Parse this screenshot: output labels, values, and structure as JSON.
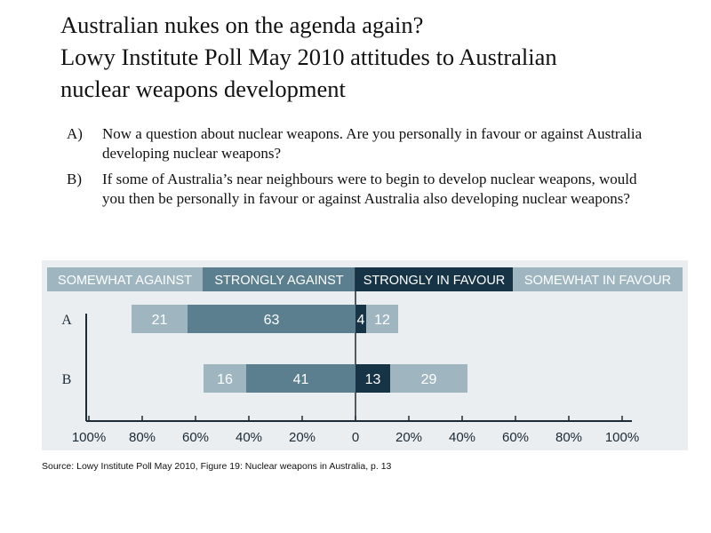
{
  "title_lines": [
    "Australian nukes on the agenda again?",
    "Lowy Institute Poll May 2010 attitudes to Australian",
    "nuclear weapons development"
  ],
  "questions": [
    {
      "letter": "A)",
      "text": "Now a question about nuclear weapons. Are you personally in favour or against Australia developing nuclear weapons?"
    },
    {
      "letter": "B)",
      "text": "If some of Australia’s near neighbours were to begin to develop nuclear weapons, would you then be personally in favour or against Australia also developing nuclear weapons?"
    }
  ],
  "source": "Source: Lowy Institute Poll May 2010, Figure 19: Nuclear weapons in Australia, p. 13",
  "colors": {
    "somewhat_against": "#9fb6c1",
    "strongly_against": "#5b7f8f",
    "strongly_in_favour": "#173447",
    "somewhat_in_favour": "#9fb6c1",
    "axis": "#1c2b36"
  },
  "chart_data": {
    "type": "bar",
    "orientation": "horizontal",
    "stacked": "diverging",
    "categories": [
      "A",
      "B"
    ],
    "legend": [
      "SOMEWHAT AGAINST",
      "STRONGLY AGAINST",
      "STRONGLY IN FAVOUR",
      "SOMEWHAT IN FAVOUR"
    ],
    "legend_placement": "top",
    "series": [
      {
        "name": "SOMEWHAT AGAINST",
        "side": "left",
        "values": [
          21,
          16
        ]
      },
      {
        "name": "STRONGLY AGAINST",
        "side": "left",
        "values": [
          63,
          41
        ]
      },
      {
        "name": "STRONGLY IN FAVOUR",
        "side": "right",
        "values": [
          4,
          13
        ]
      },
      {
        "name": "SOMEWHAT IN FAVOUR",
        "side": "right",
        "values": [
          12,
          29
        ]
      }
    ],
    "xlim": [
      -100,
      100
    ],
    "xticks": [
      -100,
      -80,
      -60,
      -40,
      -20,
      0,
      20,
      40,
      60,
      80,
      100
    ],
    "xtick_labels": [
      "100%",
      "80%",
      "60%",
      "40%",
      "20%",
      "0",
      "20%",
      "40%",
      "60%",
      "80%",
      "100%"
    ],
    "grid": false
  }
}
